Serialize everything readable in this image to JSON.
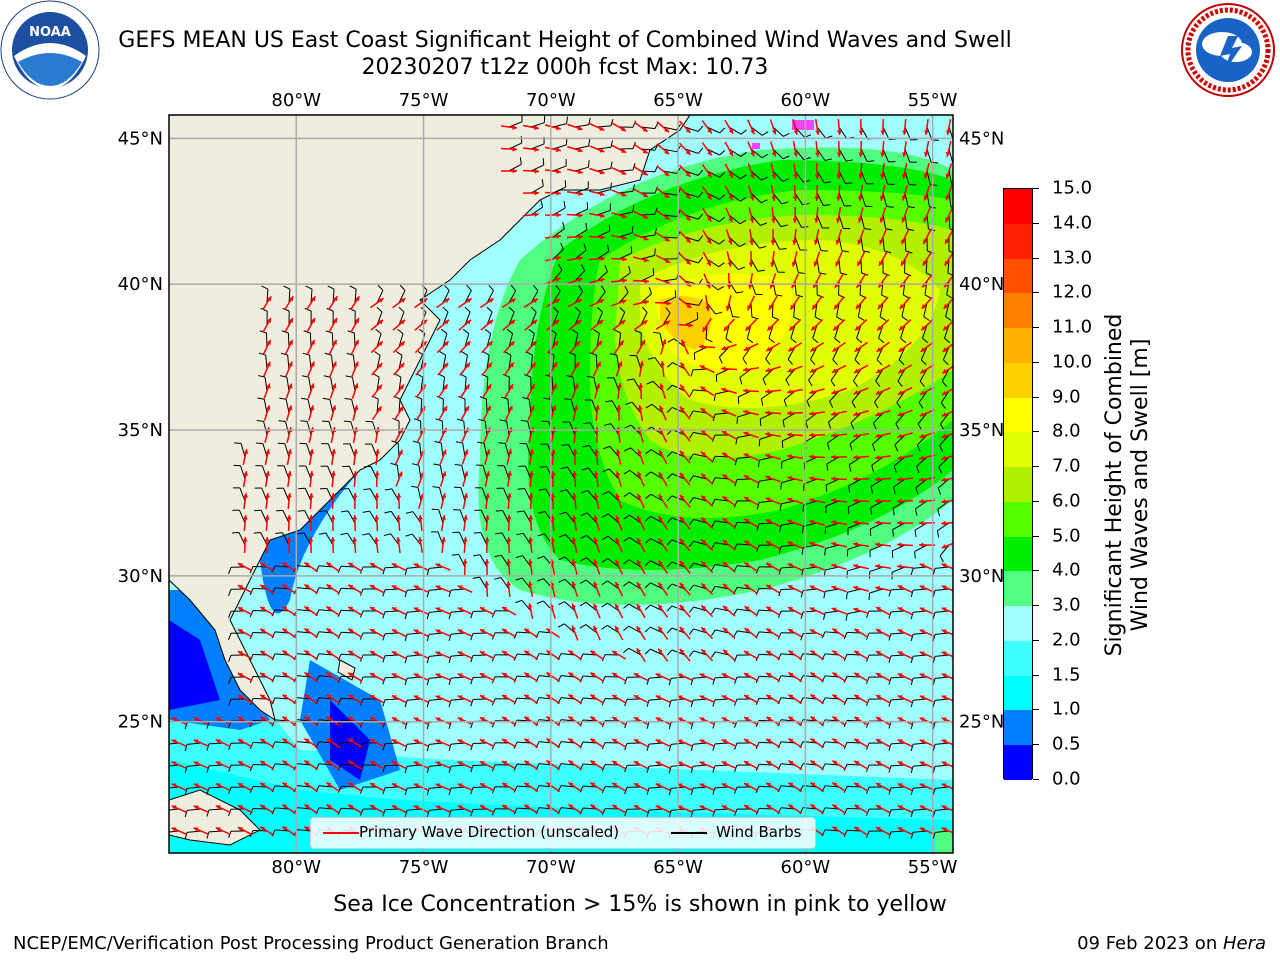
{
  "header": {
    "title_line1": "GEFS MEAN US East Coast Significant Height of Combined Wind Waves and Swell",
    "title_line2": "20230207 t12z 000h fcst   Max: 10.73"
  },
  "logos": {
    "noaa": {
      "text": "NOAA",
      "ring_text": "NATIONAL OCEANIC AND ATMOSPHERIC ADMINISTRATION · U.S. DEPARTMENT OF COMMERCE"
    },
    "nws": {
      "ring_text": "NATIONAL WEATHER SERVICE"
    }
  },
  "map": {
    "lon_labels": [
      "80°W",
      "75°W",
      "70°W",
      "65°W",
      "60°W",
      "55°W"
    ],
    "lat_labels": [
      "45°N",
      "40°N",
      "35°N",
      "30°N",
      "25°N"
    ],
    "lon_values": [
      -80,
      -75,
      -70,
      -65,
      -60,
      -55
    ],
    "lat_values": [
      45,
      40,
      35,
      30,
      25
    ],
    "extent": {
      "lon_min": -85,
      "lon_max": -54.2,
      "lat_min": 20.5,
      "lat_max": 45.8
    },
    "land_color": "#efedde",
    "max_value": 10.73
  },
  "legend": {
    "wave_label": "Primary Wave Direction (unscaled)",
    "wind_label": "Wind Barbs",
    "wave_color": "#ff0000",
    "wind_color": "#000000"
  },
  "colorbar": {
    "title_line1": "Significant Height of Combined",
    "title_line2": "Wind Waves and Swell [m]",
    "ticks": [
      "0.0",
      "0.5",
      "1.0",
      "1.5",
      "2.0",
      "3.0",
      "4.0",
      "5.0",
      "6.0",
      "7.0",
      "8.0",
      "9.0",
      "10.0",
      "11.0",
      "12.0",
      "13.0",
      "14.0",
      "15.0"
    ],
    "colors": [
      "#0000ff",
      "#0080ff",
      "#00ffff",
      "#40ffff",
      "#a0ffff",
      "#50ff80",
      "#00ee00",
      "#55ff00",
      "#b0f000",
      "#e0ff00",
      "#ffff00",
      "#ffd000",
      "#ffb000",
      "#ff8000",
      "#ff5000",
      "#ff2000",
      "#ff0000"
    ]
  },
  "footer": {
    "sea_ice_note": "Sea Ice Concentration > 15% is shown in pink to yellow",
    "credit": "NCEP/EMC/Verification Post Processing Product Generation Branch",
    "date_prefix": "09 Feb 2023 on ",
    "date_host": "Hera"
  }
}
